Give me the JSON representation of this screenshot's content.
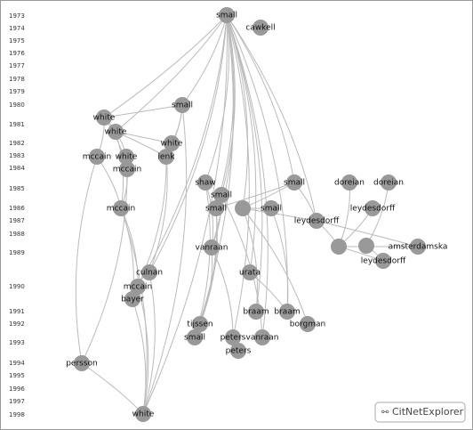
{
  "years": [
    1973,
    1974,
    1975,
    1976,
    1977,
    1978,
    1979,
    1980,
    1981,
    1982,
    1983,
    1984,
    1985,
    1986,
    1987,
    1988,
    1989,
    1990,
    1991,
    1992,
    1993,
    1994,
    1995,
    1996,
    1997,
    1998
  ],
  "nodes": [
    {
      "label": "small"
    },
    {
      "label": "cawkell"
    },
    {
      "label": "small"
    },
    {
      "label": "white"
    },
    {
      "label": "white"
    },
    {
      "label": "white"
    },
    {
      "label": "mccain"
    },
    {
      "label": "white"
    },
    {
      "label": "lenk"
    },
    {
      "label": "mccain"
    },
    {
      "label": "shaw"
    },
    {
      "label": "small"
    },
    {
      "label": "doreian"
    },
    {
      "label": "doreian"
    },
    {
      "label": "small"
    },
    {
      "label": "small"
    },
    {
      "label": "small"
    },
    {
      "label": "mccain"
    },
    {
      "label": "leydesdorff"
    },
    {
      "label": "leydesdorff"
    },
    {
      "label": "vanraan"
    },
    {
      "label": "amsterdamska"
    },
    {
      "label": "leydesdorff"
    },
    {
      "label": "culnan"
    },
    {
      "label": "urata"
    },
    {
      "label": "mccain"
    },
    {
      "label": "bayer"
    },
    {
      "label": "braam"
    },
    {
      "label": "braam"
    },
    {
      "label": "borgman"
    },
    {
      "label": "tijssen"
    },
    {
      "label": "small"
    },
    {
      "label": "peters"
    },
    {
      "label": "vanraan"
    },
    {
      "label": "peters"
    },
    {
      "label": "persson"
    },
    {
      "label": "white"
    }
  ],
  "button": "CitNetExplorer"
}
